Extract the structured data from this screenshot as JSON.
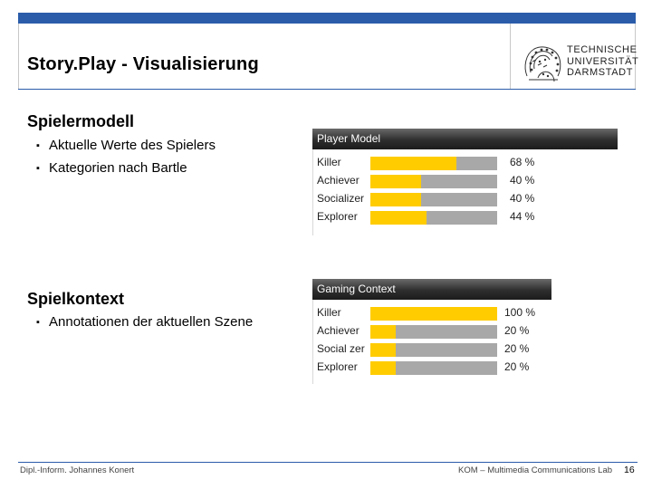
{
  "slide": {
    "title": "Story.Play - Visualisierung"
  },
  "logo": {
    "lines": [
      "TECHNISCHE",
      "UNIVERSITÄT",
      "DARMSTADT"
    ]
  },
  "sections": [
    {
      "heading": "Spielermodell",
      "bullets": [
        "Aktuelle Werte des Spielers",
        "Kategorien nach Bartle"
      ]
    },
    {
      "heading": "Spielkontext",
      "bullets": [
        "Annotationen der aktuellen Szene"
      ]
    }
  ],
  "bullet_marker": "▪",
  "panels": [
    {
      "title": "Player Model",
      "rows": [
        {
          "label": "Killer",
          "value": 68,
          "display": "68 %"
        },
        {
          "label": "Achiever",
          "value": 40,
          "display": "40 %"
        },
        {
          "label": "Socializer",
          "value": 40,
          "display": "40 %"
        },
        {
          "label": "Explorer",
          "value": 44,
          "display": "44 %"
        }
      ]
    },
    {
      "title": "Gaming Context",
      "rows": [
        {
          "label": "Killer",
          "value": 100,
          "display": "100 %"
        },
        {
          "label": "Achiever",
          "value": 20,
          "display": "20 %"
        },
        {
          "label": "Social zer",
          "value": 20,
          "display": "20 %"
        },
        {
          "label": "Explorer",
          "value": 20,
          "display": "20 %"
        }
      ]
    }
  ],
  "colors": {
    "accent": "#2a5caa",
    "bar_fill": "#ffcc00",
    "bar_track": "#a8a8a8",
    "panel_header": "#2e2e2e"
  },
  "footer": {
    "author": "Dipl.-Inform. Johannes Konert",
    "lab": "KOM – Multimedia Communications Lab",
    "page": "16"
  }
}
